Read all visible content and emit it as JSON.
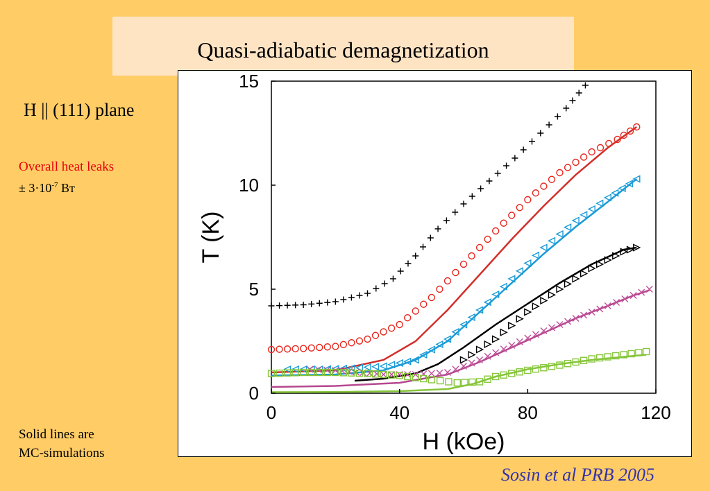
{
  "slide": {
    "title": "Quasi-adiabatic demagnetization",
    "field_orientation": "H || (111) plane",
    "heat_leaks_label": "Overall heat leaks",
    "heat_leaks_prefix": "± 3·10",
    "heat_leaks_exponent": "-7",
    "heat_leaks_unit": " Вт",
    "solid_lines_note_line1": "Solid lines are",
    "solid_lines_note_line2": "MC-simulations",
    "citation": "Sosin et al PRB 2005"
  },
  "chart_data": {
    "type": "scatter",
    "xlabel": "H (kOe)",
    "ylabel": "T (K)",
    "xlim": [
      0,
      120
    ],
    "ylim": [
      0,
      15
    ],
    "xticks": [
      "0",
      "40",
      "80",
      "120"
    ],
    "yticks": [
      "0",
      "5",
      "10",
      "15"
    ],
    "grid": false,
    "series": [
      {
        "marker": "plus",
        "color": "#000000",
        "points": [
          [
            0,
            4.2
          ],
          [
            10,
            4.25
          ],
          [
            20,
            4.4
          ],
          [
            30,
            4.8
          ],
          [
            38,
            5.5
          ],
          [
            45,
            6.6
          ],
          [
            52,
            7.9
          ],
          [
            60,
            9.1
          ],
          [
            68,
            10.2
          ],
          [
            76,
            11.3
          ],
          [
            84,
            12.5
          ],
          [
            92,
            13.7
          ],
          [
            98,
            14.8
          ]
        ]
      },
      {
        "marker": "circle",
        "color": "#E8281E",
        "points": [
          [
            0,
            2.1
          ],
          [
            10,
            2.15
          ],
          [
            20,
            2.25
          ],
          [
            30,
            2.6
          ],
          [
            40,
            3.3
          ],
          [
            50,
            4.6
          ],
          [
            60,
            6.2
          ],
          [
            70,
            7.8
          ],
          [
            80,
            9.3
          ],
          [
            90,
            10.6
          ],
          [
            100,
            11.6
          ],
          [
            108,
            12.2
          ],
          [
            114,
            12.8
          ]
        ]
      },
      {
        "marker": "triangle-left",
        "color": "#1B9BD7",
        "points": [
          [
            5,
            1.15
          ],
          [
            15,
            1.15
          ],
          [
            25,
            1.2
          ],
          [
            35,
            1.3
          ],
          [
            45,
            1.6
          ],
          [
            55,
            2.6
          ],
          [
            65,
            4.0
          ],
          [
            75,
            5.5
          ],
          [
            85,
            7.0
          ],
          [
            95,
            8.3
          ],
          [
            105,
            9.4
          ],
          [
            114,
            10.3
          ]
        ]
      },
      {
        "marker": "triangle-right",
        "color": "#000000",
        "points": [
          [
            60,
            1.6
          ],
          [
            70,
            2.6
          ],
          [
            80,
            3.9
          ],
          [
            90,
            5.0
          ],
          [
            100,
            6.0
          ],
          [
            110,
            6.8
          ],
          [
            114,
            7.0
          ]
        ]
      },
      {
        "marker": "x",
        "color": "#C0509A",
        "points": [
          [
            12,
            1.15
          ],
          [
            20,
            1.1
          ],
          [
            35,
            0.9
          ],
          [
            45,
            0.9
          ],
          [
            55,
            1.0
          ],
          [
            65,
            1.6
          ],
          [
            75,
            2.3
          ],
          [
            85,
            3.0
          ],
          [
            95,
            3.6
          ],
          [
            105,
            4.2
          ],
          [
            113,
            4.7
          ],
          [
            118,
            5.0
          ]
        ]
      },
      {
        "marker": "square",
        "color": "#86C53A",
        "points": [
          [
            0,
            0.95
          ],
          [
            10,
            1.0
          ],
          [
            20,
            1.0
          ],
          [
            30,
            0.95
          ],
          [
            40,
            0.85
          ],
          [
            50,
            0.65
          ],
          [
            58,
            0.5
          ],
          [
            65,
            0.55
          ],
          [
            70,
            0.8
          ],
          [
            80,
            1.1
          ],
          [
            90,
            1.35
          ],
          [
            100,
            1.65
          ],
          [
            110,
            1.85
          ],
          [
            117,
            2.0
          ]
        ]
      }
    ],
    "simulations": [
      {
        "color": "#D22E2A",
        "points": [
          [
            0,
            1.0
          ],
          [
            20,
            1.1
          ],
          [
            35,
            1.6
          ],
          [
            45,
            2.5
          ],
          [
            55,
            4.0
          ],
          [
            65,
            5.7
          ],
          [
            75,
            7.4
          ],
          [
            85,
            9.0
          ],
          [
            95,
            10.5
          ],
          [
            105,
            11.8
          ],
          [
            114,
            12.8
          ]
        ]
      },
      {
        "color": "#1B9BD7",
        "points": [
          [
            0,
            0.85
          ],
          [
            20,
            0.9
          ],
          [
            35,
            1.1
          ],
          [
            45,
            1.6
          ],
          [
            55,
            2.5
          ],
          [
            65,
            3.9
          ],
          [
            75,
            5.3
          ],
          [
            85,
            6.7
          ],
          [
            95,
            8.0
          ],
          [
            105,
            9.2
          ],
          [
            114,
            10.3
          ]
        ]
      },
      {
        "color": "#000000",
        "points": [
          [
            26,
            0.6
          ],
          [
            35,
            0.7
          ],
          [
            45,
            0.95
          ],
          [
            52,
            1.4
          ],
          [
            60,
            2.2
          ],
          [
            70,
            3.3
          ],
          [
            80,
            4.3
          ],
          [
            90,
            5.3
          ],
          [
            100,
            6.2
          ],
          [
            110,
            6.9
          ],
          [
            114,
            7.0
          ]
        ]
      },
      {
        "color": "#B5478F",
        "points": [
          [
            0,
            0.3
          ],
          [
            20,
            0.35
          ],
          [
            40,
            0.5
          ],
          [
            55,
            0.9
          ],
          [
            65,
            1.5
          ],
          [
            75,
            2.2
          ],
          [
            85,
            2.9
          ],
          [
            95,
            3.6
          ],
          [
            105,
            4.2
          ],
          [
            113,
            4.7
          ],
          [
            118,
            4.95
          ]
        ]
      },
      {
        "color": "#86C53A",
        "points": [
          [
            0,
            0.05
          ],
          [
            20,
            0.06
          ],
          [
            40,
            0.1
          ],
          [
            55,
            0.2
          ],
          [
            63,
            0.45
          ],
          [
            70,
            0.8
          ],
          [
            80,
            1.15
          ],
          [
            90,
            1.4
          ],
          [
            100,
            1.6
          ],
          [
            110,
            1.75
          ],
          [
            117,
            1.85
          ]
        ]
      }
    ]
  }
}
